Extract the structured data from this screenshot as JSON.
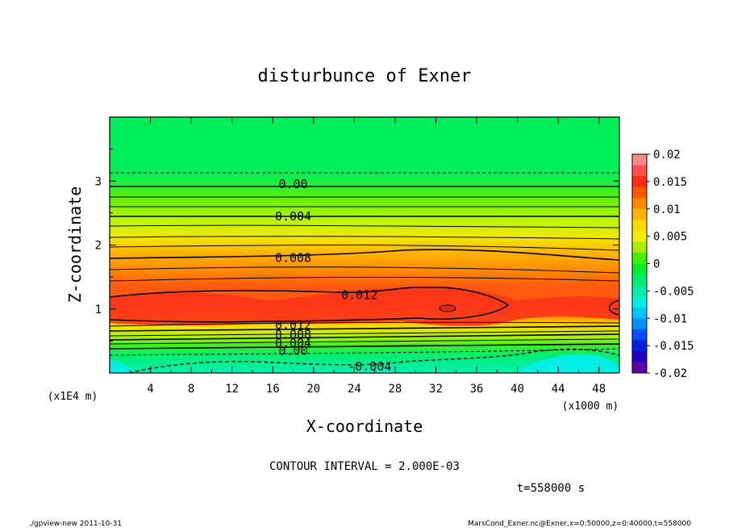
{
  "chart_data": {
    "type": "heatmap",
    "title": "disturbunce of Exner",
    "xlabel": "X-coordinate",
    "ylabel": "Z-coordinate",
    "x_unit": "(x1000 m)",
    "z_unit": "(x1E4 m)",
    "xlim": [
      0,
      50
    ],
    "zlim": [
      0,
      4
    ],
    "x_ticks": [
      "4",
      "8",
      "12",
      "16",
      "20",
      "24",
      "28",
      "32",
      "36",
      "40",
      "44",
      "48"
    ],
    "z_ticks": [
      "1",
      "2",
      "3"
    ],
    "colorbar": {
      "ticks": [
        "0.02",
        "0.015",
        "0.01",
        "0.005",
        "0",
        "-0.005",
        "-0.01",
        "-0.015",
        "-0.02"
      ],
      "range": [
        -0.02,
        0.02
      ]
    },
    "contour_labels": [
      {
        "text": "0.00",
        "x": 18,
        "z": 2.95
      },
      {
        "text": "0.004",
        "x": 18,
        "z": 2.45
      },
      {
        "text": "0.008",
        "x": 18,
        "z": 1.8
      },
      {
        "text": "0.012",
        "x": 24.5,
        "z": 1.22
      },
      {
        "text": "0.012",
        "x": 18,
        "z": 0.75
      },
      {
        "text": "0.008",
        "x": 18,
        "z": 0.6
      },
      {
        "text": "0.004",
        "x": 18,
        "z": 0.47
      },
      {
        "text": "0.00",
        "x": 18,
        "z": 0.35
      },
      {
        "text": "-0.004",
        "x": 25.5,
        "z": 0.1
      }
    ],
    "contour_interval_text": "CONTOUR INTERVAL = 2.000E-03",
    "time_text": "t=558000 s"
  },
  "footer": {
    "left": "./gpview-new  2011-10-31",
    "right": "MarsCond_Exner.nc@Exner,x=0:50000,z=0:40000,t=558000"
  },
  "colors": {
    "background_green": "#00ee5a",
    "peak_red": "#ff3318",
    "cyan": "#00f0e8"
  }
}
